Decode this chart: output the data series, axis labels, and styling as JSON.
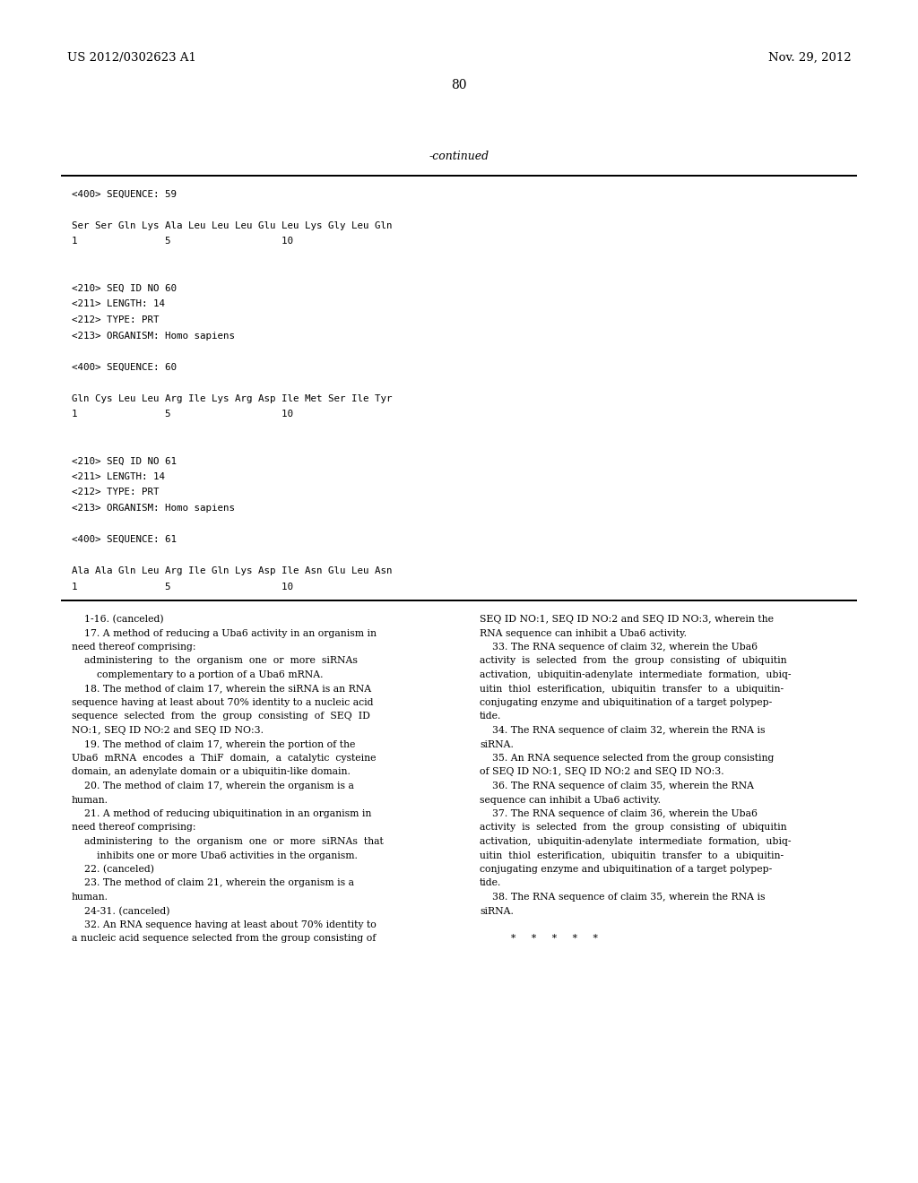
{
  "bg_color": "#ffffff",
  "header_left": "US 2012/0302623 A1",
  "header_right": "Nov. 29, 2012",
  "page_number": "80",
  "continued_label": "-continued",
  "sequence_block": [
    "<400> SEQUENCE: 59",
    "",
    "Ser Ser Gln Lys Ala Leu Leu Leu Glu Leu Lys Gly Leu Gln",
    "1               5                   10",
    "",
    "",
    "<210> SEQ ID NO 60",
    "<211> LENGTH: 14",
    "<212> TYPE: PRT",
    "<213> ORGANISM: Homo sapiens",
    "",
    "<400> SEQUENCE: 60",
    "",
    "Gln Cys Leu Leu Arg Ile Lys Arg Asp Ile Met Ser Ile Tyr",
    "1               5                   10",
    "",
    "",
    "<210> SEQ ID NO 61",
    "<211> LENGTH: 14",
    "<212> TYPE: PRT",
    "<213> ORGANISM: Homo sapiens",
    "",
    "<400> SEQUENCE: 61",
    "",
    "Ala Ala Gln Leu Arg Ile Gln Lys Asp Ile Asn Glu Leu Asn",
    "1               5                   10"
  ],
  "claims_left": [
    "    1-16. (canceled)",
    "    17. A method of reducing a Uba6 activity in an organism in",
    "need thereof comprising:",
    "    administering  to  the  organism  one  or  more  siRNAs",
    "        complementary to a portion of a Uba6 mRNA.",
    "    18. The method of claim 17, wherein the siRNA is an RNA",
    "sequence having at least about 70% identity to a nucleic acid",
    "sequence  selected  from  the  group  consisting  of  SEQ  ID",
    "NO:1, SEQ ID NO:2 and SEQ ID NO:3.",
    "    19. The method of claim 17, wherein the portion of the",
    "Uba6  mRNA  encodes  a  ThiF  domain,  a  catalytic  cysteine",
    "domain, an adenylate domain or a ubiquitin-like domain.",
    "    20. The method of claim 17, wherein the organism is a",
    "human.",
    "    21. A method of reducing ubiquitination in an organism in",
    "need thereof comprising:",
    "    administering  to  the  organism  one  or  more  siRNAs  that",
    "        inhibits one or more Uba6 activities in the organism.",
    "    22. (canceled)",
    "    23. The method of claim 21, wherein the organism is a",
    "human.",
    "    24-31. (canceled)",
    "    32. An RNA sequence having at least about 70% identity to",
    "a nucleic acid sequence selected from the group consisting of"
  ],
  "claims_right": [
    "SEQ ID NO:1, SEQ ID NO:2 and SEQ ID NO:3, wherein the",
    "RNA sequence can inhibit a Uba6 activity.",
    "    33. The RNA sequence of claim 32, wherein the Uba6",
    "activity  is  selected  from  the  group  consisting  of  ubiquitin",
    "activation,  ubiquitin-adenylate  intermediate  formation,  ubiq-",
    "uitin  thiol  esterification,  ubiquitin  transfer  to  a  ubiquitin-",
    "conjugating enzyme and ubiquitination of a target polypep-",
    "tide.",
    "    34. The RNA sequence of claim 32, wherein the RNA is",
    "siRNA.",
    "    35. An RNA sequence selected from the group consisting",
    "of SEQ ID NO:1, SEQ ID NO:2 and SEQ ID NO:3.",
    "    36. The RNA sequence of claim 35, wherein the RNA",
    "sequence can inhibit a Uba6 activity.",
    "    37. The RNA sequence of claim 36, wherein the Uba6",
    "activity  is  selected  from  the  group  consisting  of  ubiquitin",
    "activation,  ubiquitin-adenylate  intermediate  formation,  ubiq-",
    "uitin  thiol  esterification,  ubiquitin  transfer  to  a  ubiquitin-",
    "conjugating enzyme and ubiquitination of a target polypep-",
    "tide.",
    "    38. The RNA sequence of claim 35, wherein the RNA is",
    "siRNA.",
    "",
    "          *     *     *     *     *"
  ]
}
